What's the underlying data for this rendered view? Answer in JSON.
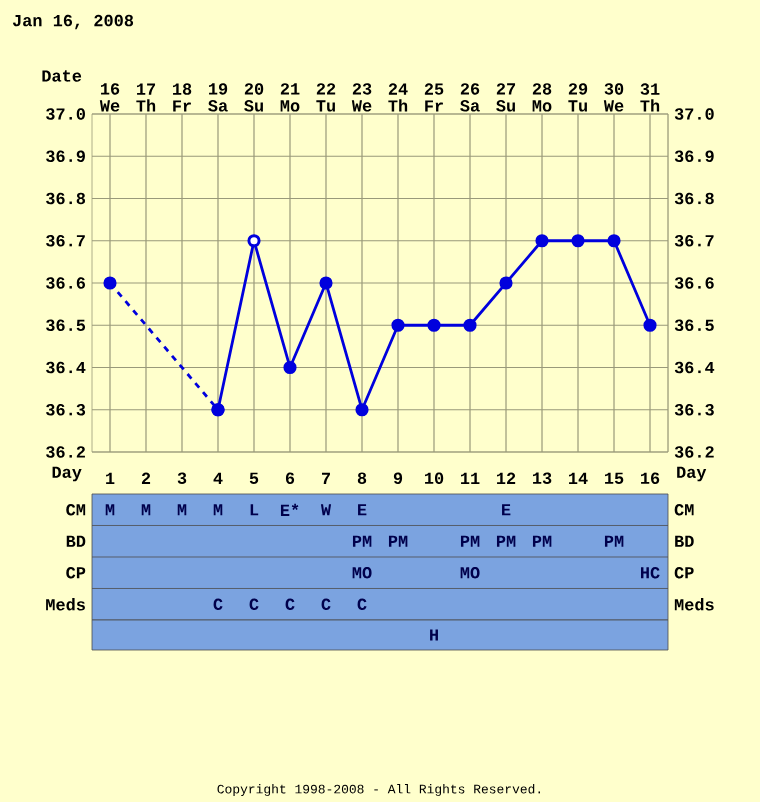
{
  "chart_data": [
    {
      "type": "line",
      "title": "Jan 16, 2008",
      "xlabel": "Date",
      "categories": [
        "16 We",
        "17 Th",
        "18 Fr",
        "19 Sa",
        "20 Su",
        "21 Mo",
        "22 Tu",
        "23 We",
        "24 Th",
        "25 Fr",
        "26 Sa",
        "27 Su",
        "28 Mo",
        "29 Tu",
        "30 We",
        "31 Th"
      ],
      "ylim": [
        36.2,
        37
      ],
      "yticks": [
        36.2,
        36.3,
        36.4,
        36.5,
        36.6,
        36.7,
        36.8,
        36.9,
        {
          "value": 37,
          "label": "37.0"
        }
      ],
      "y2lim": [
        36.2,
        37
      ],
      "y2ticks": [
        36.2,
        36.3,
        36.4,
        36.5,
        36.6,
        36.7,
        36.8,
        36.9,
        {
          "value": 37,
          "label": "37.0"
        }
      ],
      "grid": true,
      "marker": "circle",
      "series": [
        {
          "color": "#0000dd",
          "line_style": "dashed",
          "values": [
            36.6,
            null,
            null,
            36.3,
            null,
            null,
            null,
            null,
            null,
            null,
            null,
            null,
            null,
            null,
            null,
            null
          ]
        },
        {
          "color": "#0000dd",
          "line_style": "solid",
          "values": [
            null,
            null,
            null,
            36.3,
            36.7,
            36.4,
            36.6,
            36.3,
            36.5,
            36.5,
            36.5,
            36.6,
            36.7,
            36.7,
            36.7,
            36.5
          ]
        },
        {
          "type": "scatter",
          "color": "#ffffff",
          "values": [
            null,
            null,
            null,
            null,
            36.7,
            null,
            null,
            null,
            null,
            null,
            null,
            null,
            null,
            null,
            null,
            null
          ]
        }
      ],
      "annotations": [
        "Copyright 1998-2008 - All Rights Reserved."
      ]
    },
    {
      "type": "heatmap",
      "xlabel": "Day",
      "categories": [
        "1",
        "2",
        "3",
        "4",
        "5",
        "6",
        "7",
        "8",
        "9",
        "10",
        "11",
        "12",
        "13",
        "14",
        "15",
        "16"
      ],
      "y_categories": [
        "CM",
        "BD",
        "CP",
        "Meds"
      ],
      "y2_categories": [
        "CM",
        "BD",
        "CP",
        "Meds"
      ],
      "cells": [
        [
          null,
          null,
          null,
          null,
          null,
          null,
          null,
          null,
          null,
          null,
          null,
          null,
          null,
          null,
          null,
          null
        ],
        [
          null,
          null,
          null,
          null,
          null,
          null,
          null,
          null,
          null,
          null,
          null,
          null,
          null,
          null,
          null,
          null
        ],
        [
          null,
          null,
          null,
          null,
          null,
          null,
          null,
          null,
          null,
          null,
          null,
          null,
          null,
          null,
          null,
          null
        ],
        [
          null,
          null,
          null,
          null,
          null,
          null,
          null,
          null,
          null,
          null,
          null,
          null,
          null,
          null,
          null,
          null
        ]
      ],
      "cell_labels": [
        [
          "M",
          "M",
          "M",
          "M",
          "L",
          "E*",
          "W",
          "E",
          null,
          null,
          null,
          "E",
          null,
          null,
          null,
          null
        ],
        [
          null,
          null,
          null,
          null,
          null,
          null,
          null,
          "PM",
          "PM",
          null,
          "PM",
          "PM",
          "PM",
          null,
          "PM",
          null
        ],
        [
          null,
          null,
          null,
          null,
          null,
          null,
          null,
          "MO",
          null,
          null,
          "MO",
          null,
          null,
          null,
          null,
          "HC"
        ],
        [
          null,
          null,
          null,
          "C",
          "C",
          "C",
          "C",
          "C",
          null,
          null,
          null,
          null,
          null,
          null,
          null,
          null
        ]
      ]
    },
    {
      "type": "other",
      "categories": [
        null,
        null,
        null,
        null,
        null,
        null,
        null,
        null,
        null,
        null,
        null,
        null,
        null,
        null,
        null,
        null
      ],
      "cell_labels": [
        [
          null,
          null,
          null,
          null,
          null,
          null,
          null,
          null,
          null,
          "H",
          null,
          null,
          null,
          null,
          null,
          null
        ]
      ]
    }
  ]
}
